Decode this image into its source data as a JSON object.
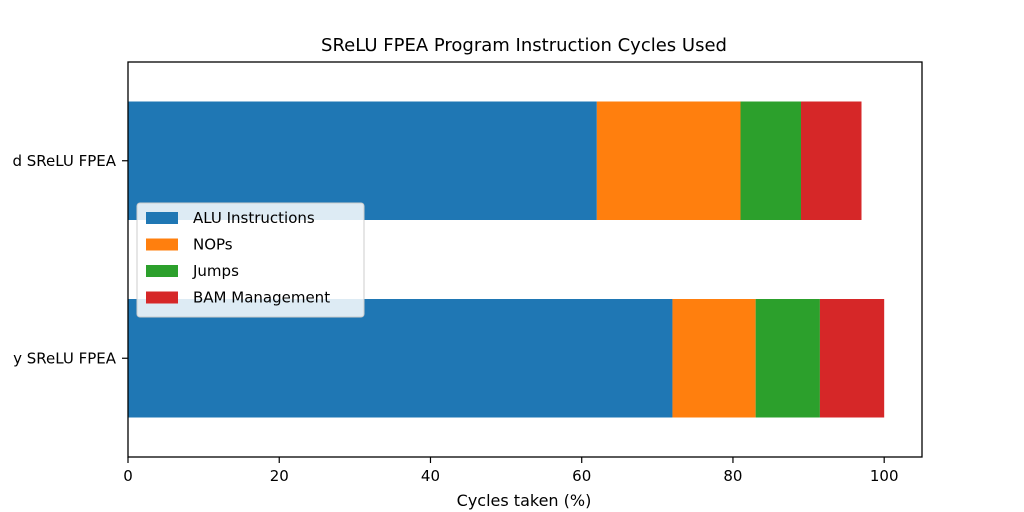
{
  "chart_data": {
    "type": "bar",
    "orientation": "horizontal",
    "stacked": true,
    "title": "SReLU FPEA Program Instruction Cycles Used",
    "xlabel": "Cycles taken (%)",
    "ylabel": "",
    "xlim": [
      0,
      105
    ],
    "xticks": [
      0,
      20,
      40,
      60,
      80,
      100
    ],
    "categories": [
      "d SReLU FPEA",
      "y SReLU FPEA"
    ],
    "series": [
      {
        "name": "ALU Instructions",
        "color": "#1f77b4",
        "values": [
          62,
          72
        ]
      },
      {
        "name": "NOPs",
        "color": "#ff7f0e",
        "values": [
          19,
          11
        ]
      },
      {
        "name": "Jumps",
        "color": "#2ca02c",
        "values": [
          8,
          8.5
        ]
      },
      {
        "name": "BAM Management",
        "color": "#d62728",
        "values": [
          8,
          8.5
        ]
      }
    ],
    "grid": false,
    "legend_position": "center-left"
  }
}
